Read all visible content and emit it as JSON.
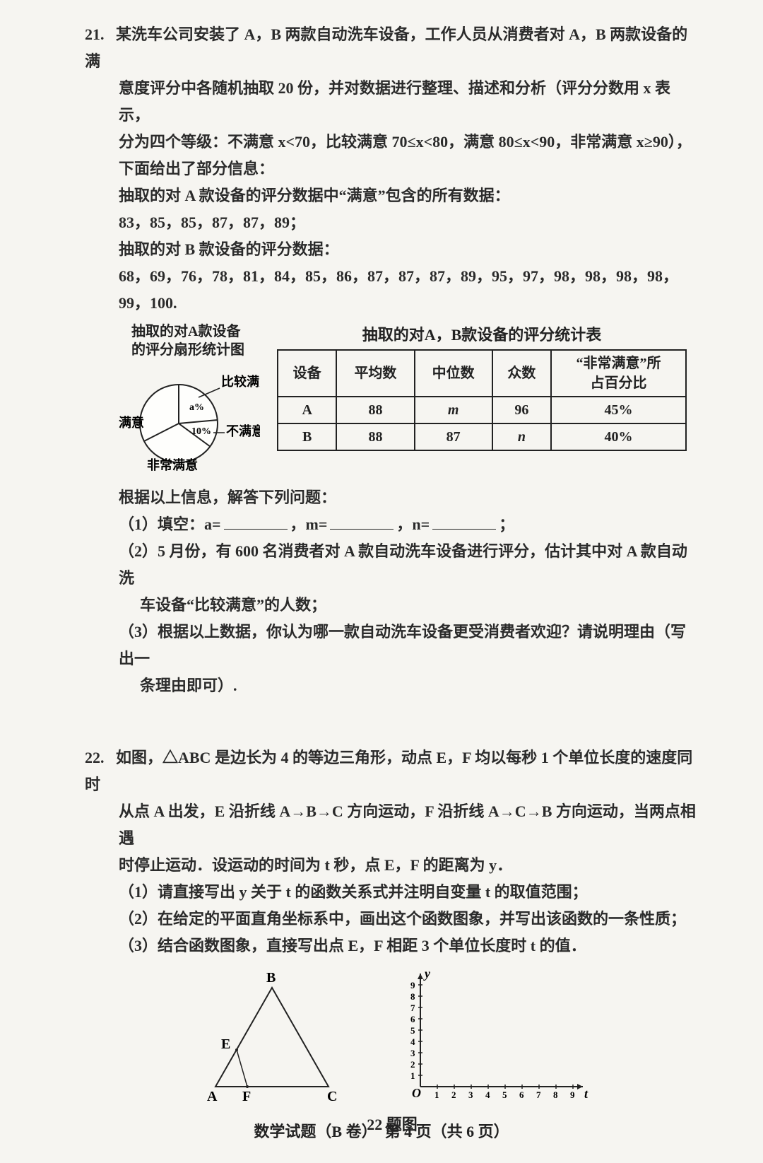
{
  "q21": {
    "num": "21.",
    "p1": "某洗车公司安装了 A，B 两款自动洗车设备，工作人员从消费者对 A，B 两款设备的满",
    "p2": "意度评分中各随机抽取 20 份，并对数据进行整理、描述和分析（评分分数用 x 表示，",
    "p3": "分为四个等级：不满意 x<70，比较满意 70≤x<80，满意 80≤x<90，非常满意 x≥90），",
    "p4": "下面给出了部分信息：",
    "p5": "抽取的对 A 款设备的评分数据中“满意”包含的所有数据：",
    "p6": "83，85，85，87，87，89；",
    "p7": "抽取的对 B 款设备的评分数据：",
    "p8": "68，69，76，78，81，84，85，86，87，87，87，89，95，97，98，98，98，98，99，100.",
    "pie_title_l1": "抽取的对A款设备",
    "pie_title_l2": "的评分扇形统计图",
    "pie_labels": {
      "compare": "比较满意",
      "un": "不满意",
      "sat": "满意",
      "very": "非常满意",
      "a_pct": "a%",
      "ten_pct": "10%"
    },
    "table": {
      "title": "抽取的对A，B款设备的评分统计表",
      "headers": [
        "设备",
        "平均数",
        "中位数",
        "众数",
        "“非常满意”所\n占百分比"
      ],
      "rows": [
        [
          "A",
          "88",
          "m",
          "96",
          "45%"
        ],
        [
          "B",
          "88",
          "87",
          "n",
          "40%"
        ]
      ]
    },
    "after_p1": "根据以上信息，解答下列问题：",
    "sub1_lead": "（1）填空：a=",
    "sub1_m": "，m=",
    "sub1_n": "，n=",
    "sub1_end": "；",
    "sub2_l1": "（2）5 月份，有 600 名消费者对 A 款自动洗车设备进行评分，估计其中对 A 款自动洗",
    "sub2_l2": "车设备“比较满意”的人数；",
    "sub3_l1": "（3）根据以上数据，你认为哪一款自动洗车设备更受消费者欢迎？请说明理由（写出一",
    "sub3_l2": "条理由即可）."
  },
  "q22": {
    "num": "22.",
    "p1": "如图，△ABC 是边长为 4 的等边三角形，动点 E，F 均以每秒 1 个单位长度的速度同时",
    "p2": "从点 A 出发，E 沿折线 A→B→C 方向运动，F 沿折线 A→C→B 方向运动，当两点相遇",
    "p3": "时停止运动．设运动的时间为 t 秒，点 E，F 的距离为 y．",
    "sub1": "（1）请直接写出 y 关于 t 的函数关系式并注明自变量 t 的取值范围；",
    "sub2": "（2）在给定的平面直角坐标系中，画出这个函数图象，并写出该函数的一条性质；",
    "sub3": "（3）结合函数图象，直接写出点 E，F 相距 3 个单位长度时 t 的值．",
    "fig_caption": "22 题图",
    "tri_labels": {
      "A": "A",
      "B": "B",
      "C": "C",
      "E": "E",
      "F": "F"
    },
    "axis": {
      "O": "O",
      "y": "y",
      "t": "t",
      "yticks": [
        "1",
        "2",
        "3",
        "4",
        "5",
        "6",
        "7",
        "8",
        "9"
      ],
      "xticks": [
        "1",
        "2",
        "3",
        "4",
        "5",
        "6",
        "7",
        "8",
        "9"
      ]
    }
  },
  "footer": "数学试题（B 卷）　第 4 页（共 6 页）"
}
